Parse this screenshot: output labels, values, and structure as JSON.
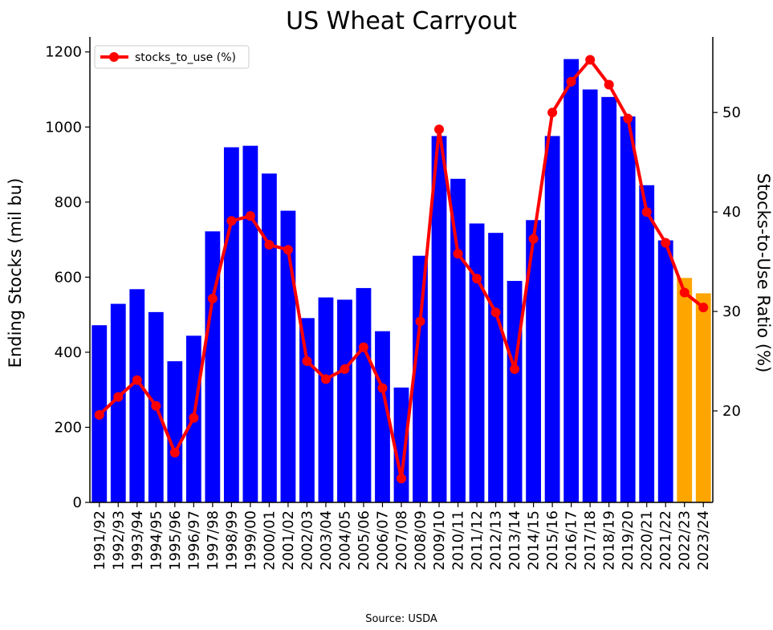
{
  "chart_data": {
    "type": "bar",
    "title": "US Wheat Carryout",
    "xlabel": "",
    "ylabel": "Ending Stocks (mil bu)",
    "ylabel_right": "Stocks-to-Use Ratio (%)",
    "source": "Source: USDA",
    "categories": [
      "1991/92",
      "1992/93",
      "1993/94",
      "1994/95",
      "1995/96",
      "1996/97",
      "1997/98",
      "1998/99",
      "1999/00",
      "2000/01",
      "2001/02",
      "2002/03",
      "2003/04",
      "2004/05",
      "2005/06",
      "2006/07",
      "2007/08",
      "2008/09",
      "2009/10",
      "2010/11",
      "2011/12",
      "2012/13",
      "2013/14",
      "2014/15",
      "2015/16",
      "2016/17",
      "2017/18",
      "2018/19",
      "2019/20",
      "2020/21",
      "2021/22",
      "2022/23",
      "2023/24"
    ],
    "series": [
      {
        "name": "",
        "axis": "left",
        "kind": "bar",
        "values": [
          472,
          529,
          568,
          507,
          376,
          444,
          722,
          946,
          950,
          876,
          777,
          491,
          546,
          540,
          571,
          456,
          306,
          657,
          976,
          862,
          743,
          718,
          590,
          752,
          976,
          1181,
          1100,
          1080,
          1028,
          845,
          698,
          598,
          557
        ],
        "colors": [
          "#0000ff",
          "#0000ff",
          "#0000ff",
          "#0000ff",
          "#0000ff",
          "#0000ff",
          "#0000ff",
          "#0000ff",
          "#0000ff",
          "#0000ff",
          "#0000ff",
          "#0000ff",
          "#0000ff",
          "#0000ff",
          "#0000ff",
          "#0000ff",
          "#0000ff",
          "#0000ff",
          "#0000ff",
          "#0000ff",
          "#0000ff",
          "#0000ff",
          "#0000ff",
          "#0000ff",
          "#0000ff",
          "#0000ff",
          "#0000ff",
          "#0000ff",
          "#0000ff",
          "#0000ff",
          "#0000ff",
          "#ffa500",
          "#ffa500"
        ]
      },
      {
        "name": "stocks_to_use (%)",
        "axis": "right",
        "kind": "line",
        "color": "#ff0000",
        "values": [
          19.6,
          21.4,
          23.1,
          20.5,
          15.8,
          19.3,
          31.3,
          39.1,
          39.6,
          36.7,
          36.2,
          25.0,
          23.2,
          24.2,
          26.4,
          22.3,
          13.2,
          29.0,
          48.3,
          35.8,
          33.3,
          29.9,
          24.2,
          37.3,
          50.0,
          53.1,
          55.3,
          52.8,
          49.4,
          40.0,
          36.9,
          31.9,
          30.4
        ]
      }
    ],
    "ylim": [
      0,
      1240
    ],
    "yticks": [
      0,
      200,
      400,
      600,
      800,
      1000,
      1200
    ],
    "ylim_right": [
      10.8,
      57.6
    ],
    "yticks_right": [
      20,
      30,
      40,
      50
    ],
    "legend_position": "top-left",
    "grid": false
  }
}
